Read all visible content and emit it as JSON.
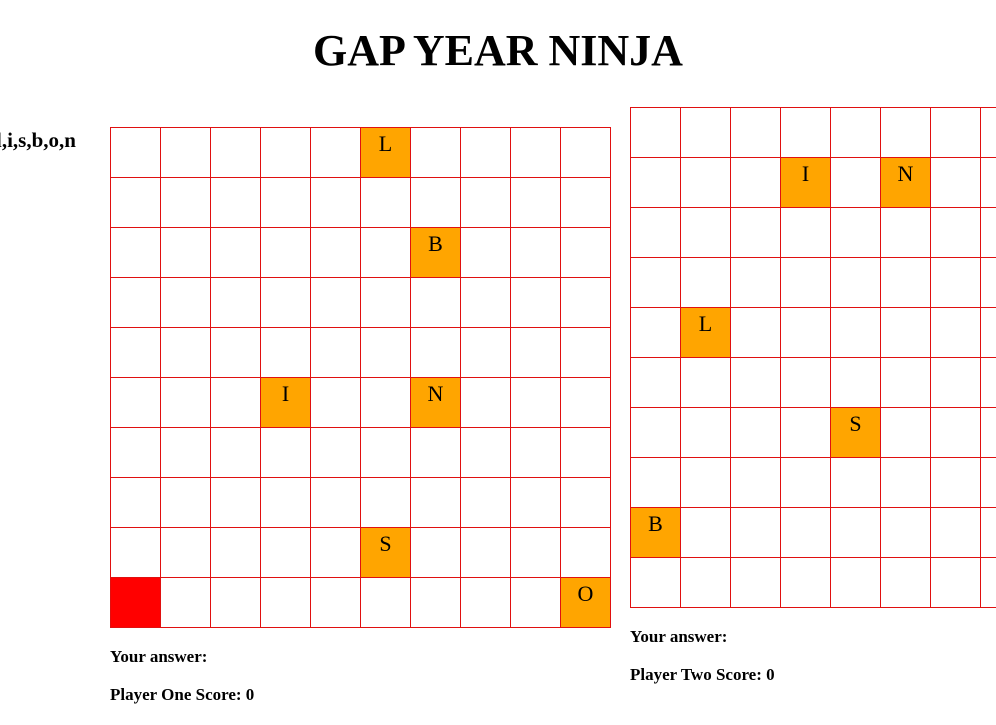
{
  "title": "GAP YEAR NINJA",
  "letters_hint": "l,i,s,b,o,n",
  "colors": {
    "grid_line": "#e01010",
    "letter_tile": "#ffa500",
    "player_tile": "#ff0000",
    "empty_tile": "#ffffff"
  },
  "player_one": {
    "answer_label": "Your answer:",
    "score_label": "Player One Score: 0",
    "grid": [
      [
        "",
        "",
        "",
        "",
        "",
        "L",
        "",
        "",
        "",
        ""
      ],
      [
        "",
        "",
        "",
        "",
        "",
        "",
        "",
        "",
        "",
        ""
      ],
      [
        "",
        "",
        "",
        "",
        "",
        "",
        "B",
        "",
        "",
        ""
      ],
      [
        "",
        "",
        "",
        "",
        "",
        "",
        "",
        "",
        "",
        ""
      ],
      [
        "",
        "",
        "",
        "",
        "",
        "",
        "",
        "",
        "",
        ""
      ],
      [
        "",
        "",
        "",
        "I",
        "",
        "",
        "N",
        "",
        "",
        ""
      ],
      [
        "",
        "",
        "",
        "",
        "",
        "",
        "",
        "",
        "",
        ""
      ],
      [
        "",
        "",
        "",
        "",
        "",
        "",
        "",
        "",
        "",
        ""
      ],
      [
        "",
        "",
        "",
        "",
        "",
        "S",
        "",
        "",
        "",
        ""
      ],
      [
        "@",
        "",
        "",
        "",
        "",
        "",
        "",
        "",
        "",
        "O"
      ]
    ]
  },
  "player_two": {
    "answer_label": "Your answer:",
    "score_label": "Player Two Score: 0",
    "grid": [
      [
        "",
        "",
        "",
        "",
        "",
        "",
        "",
        "",
        "",
        ""
      ],
      [
        "",
        "",
        "",
        "I",
        "",
        "N",
        "",
        "",
        "",
        ""
      ],
      [
        "",
        "",
        "",
        "",
        "",
        "",
        "",
        "",
        "",
        ""
      ],
      [
        "",
        "",
        "",
        "",
        "",
        "",
        "",
        "",
        "",
        ""
      ],
      [
        "",
        "L",
        "",
        "",
        "",
        "",
        "",
        "",
        "",
        ""
      ],
      [
        "",
        "",
        "",
        "",
        "",
        "",
        "",
        "",
        "",
        ""
      ],
      [
        "",
        "",
        "",
        "",
        "S",
        "",
        "",
        "",
        "",
        ""
      ],
      [
        "",
        "",
        "",
        "",
        "",
        "",
        "",
        "",
        "",
        ""
      ],
      [
        "B",
        "",
        "",
        "",
        "",
        "",
        "",
        "",
        "",
        ""
      ],
      [
        "",
        "",
        "",
        "",
        "",
        "",
        "",
        "",
        "",
        ""
      ]
    ]
  }
}
